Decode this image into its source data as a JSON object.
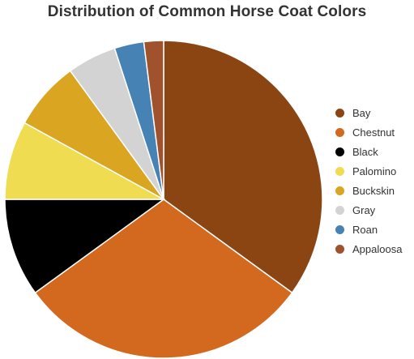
{
  "chart_data": {
    "type": "pie",
    "title": "Distribution of Common Horse Coat Colors",
    "legend_position": "right",
    "series": [
      {
        "name": "Bay",
        "value": 35,
        "color": "#8B4513"
      },
      {
        "name": "Chestnut",
        "value": 30,
        "color": "#D2691E"
      },
      {
        "name": "Black",
        "value": 10,
        "color": "#000000"
      },
      {
        "name": "Palomino",
        "value": 8,
        "color": "#F0DC50"
      },
      {
        "name": "Buckskin",
        "value": 7,
        "color": "#DAA520"
      },
      {
        "name": "Gray",
        "value": 5,
        "color": "#D3D3D3"
      },
      {
        "name": "Roan",
        "value": 3,
        "color": "#4682B4"
      },
      {
        "name": "Appaloosa",
        "value": 2,
        "color": "#A0522D"
      }
    ]
  }
}
